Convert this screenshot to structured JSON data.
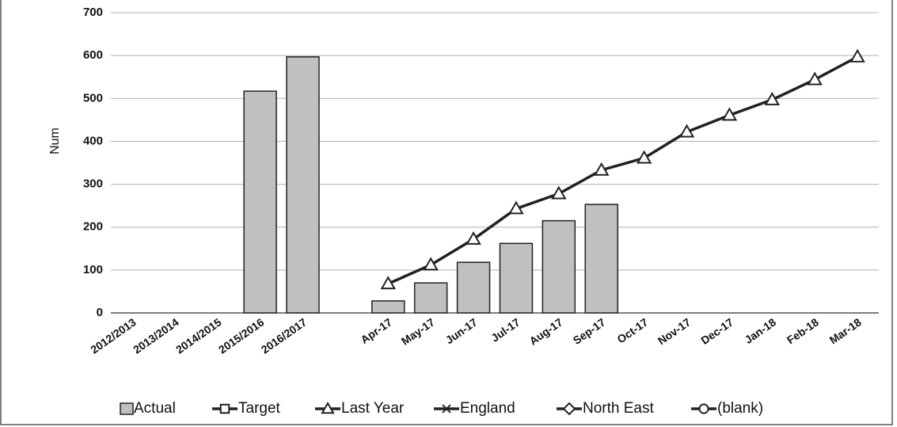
{
  "chart_data": {
    "type": "bar",
    "y_label": "Num",
    "categories": [
      "2012/2013",
      "2013/2014",
      "2014/2015",
      "2015/2016",
      "2016/2017",
      null,
      "Apr-17",
      "May-17",
      "Jun-17",
      "Jul-17",
      "Aug-17",
      "Sep-17",
      "Oct-17",
      "Nov-17",
      "Dec-17",
      "Jan-18",
      "Feb-18",
      "Mar-18"
    ],
    "series": [
      {
        "name": "Actual",
        "type": "bar",
        "color": "#c0c0c0",
        "values": [
          null,
          null,
          null,
          517,
          597,
          null,
          28,
          70,
          118,
          162,
          215,
          253,
          null,
          null,
          null,
          null,
          null,
          null
        ]
      },
      {
        "name": "Target",
        "type": "line",
        "marker": "square",
        "color": "#222222",
        "values": [
          null,
          null,
          null,
          null,
          null,
          null,
          null,
          null,
          null,
          null,
          null,
          null,
          null,
          null,
          null,
          null,
          null,
          null
        ]
      },
      {
        "name": "Last Year",
        "type": "line",
        "marker": "triangle",
        "color": "#222222",
        "values": [
          null,
          null,
          null,
          null,
          null,
          null,
          68,
          112,
          172,
          243,
          278,
          333,
          361,
          422,
          461,
          497,
          544,
          597
        ]
      },
      {
        "name": "England",
        "type": "line",
        "marker": "x",
        "color": "#222222",
        "values": [
          null,
          null,
          null,
          null,
          null,
          null,
          null,
          null,
          null,
          null,
          null,
          null,
          null,
          null,
          null,
          null,
          null,
          null
        ]
      },
      {
        "name": "North East",
        "type": "line",
        "marker": "diamond",
        "color": "#222222",
        "values": [
          null,
          null,
          null,
          null,
          null,
          null,
          null,
          null,
          null,
          null,
          null,
          null,
          null,
          null,
          null,
          null,
          null,
          null
        ]
      },
      {
        "name": "(blank)",
        "type": "line",
        "marker": "circle",
        "color": "#222222",
        "values": [
          null,
          null,
          null,
          null,
          null,
          null,
          null,
          null,
          null,
          null,
          null,
          null,
          null,
          null,
          null,
          null,
          null,
          null
        ]
      }
    ],
    "ylim": [
      0,
      700
    ],
    "yticks": [
      0,
      100,
      200,
      300,
      400,
      500,
      600,
      700
    ],
    "grid": true
  }
}
